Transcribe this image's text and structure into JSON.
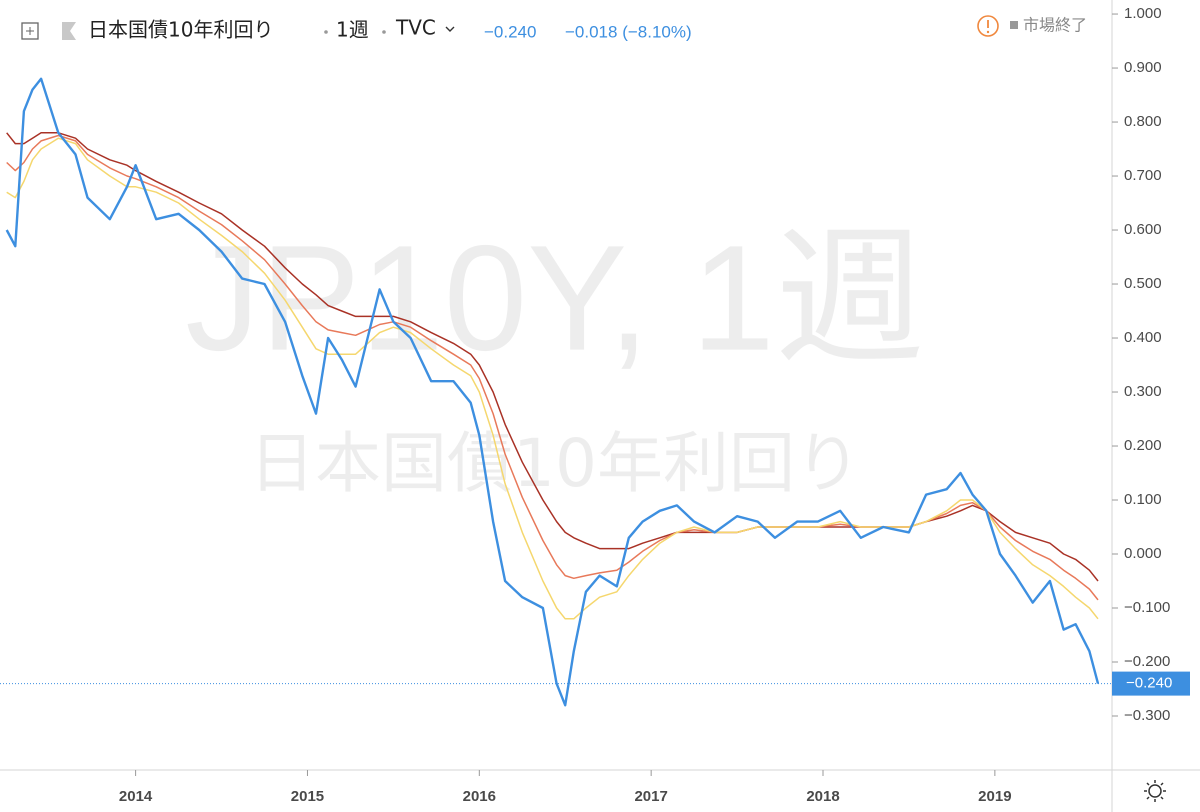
{
  "header": {
    "symbol_name": "日本国債10年利回り",
    "interval": "1週",
    "exchange": "TVC",
    "price": "−0.240",
    "change": "−0.018 (−8.10%)",
    "market_status": "市場終了"
  },
  "watermark": {
    "line1": "JP10Y, 1週",
    "line2": "日本国債10年利回り"
  },
  "chart_data": {
    "type": "line",
    "x": [
      2013.25,
      2013.3,
      2013.35,
      2013.4,
      2013.45,
      2013.55,
      2013.65,
      2013.72,
      2013.85,
      2013.95,
      2014.0,
      2014.12,
      2014.25,
      2014.37,
      2014.5,
      2014.62,
      2014.75,
      2014.87,
      2014.97,
      2015.05,
      2015.12,
      2015.2,
      2015.28,
      2015.35,
      2015.42,
      2015.5,
      2015.6,
      2015.72,
      2015.85,
      2015.95,
      2016.0,
      2016.08,
      2016.15,
      2016.25,
      2016.37,
      2016.45,
      2016.5,
      2016.55,
      2016.62,
      2016.7,
      2016.8,
      2016.87,
      2016.95,
      2017.05,
      2017.15,
      2017.25,
      2017.37,
      2017.5,
      2017.62,
      2017.72,
      2017.85,
      2017.97,
      2018.1,
      2018.22,
      2018.35,
      2018.5,
      2018.6,
      2018.72,
      2018.8,
      2018.87,
      2018.95,
      2019.03,
      2019.12,
      2019.22,
      2019.32,
      2019.4,
      2019.47,
      2019.55,
      2019.6
    ],
    "series": [
      {
        "color": "#3d8fe0",
        "values": [
          0.6,
          0.57,
          0.82,
          0.86,
          0.88,
          0.78,
          0.74,
          0.66,
          0.62,
          0.68,
          0.72,
          0.62,
          0.63,
          0.6,
          0.56,
          0.51,
          0.5,
          0.43,
          0.33,
          0.26,
          0.4,
          0.36,
          0.31,
          0.4,
          0.49,
          0.43,
          0.4,
          0.32,
          0.32,
          0.28,
          0.22,
          0.06,
          -0.05,
          -0.08,
          -0.1,
          -0.24,
          -0.28,
          -0.18,
          -0.07,
          -0.04,
          -0.06,
          0.03,
          0.06,
          0.08,
          0.09,
          0.06,
          0.04,
          0.07,
          0.06,
          0.03,
          0.06,
          0.06,
          0.08,
          0.03,
          0.05,
          0.04,
          0.11,
          0.12,
          0.15,
          0.11,
          0.08,
          0.0,
          -0.04,
          -0.09,
          -0.05,
          -0.14,
          -0.13,
          -0.18,
          -0.24
        ]
      },
      {
        "color": "#a93226",
        "values": [
          0.78,
          0.76,
          0.76,
          0.77,
          0.78,
          0.78,
          0.77,
          0.75,
          0.73,
          0.72,
          0.71,
          0.69,
          0.67,
          0.65,
          0.63,
          0.6,
          0.57,
          0.53,
          0.5,
          0.48,
          0.46,
          0.45,
          0.44,
          0.44,
          0.44,
          0.44,
          0.43,
          0.41,
          0.39,
          0.37,
          0.35,
          0.3,
          0.24,
          0.17,
          0.1,
          0.06,
          0.04,
          0.03,
          0.02,
          0.01,
          0.01,
          0.01,
          0.02,
          0.03,
          0.04,
          0.04,
          0.04,
          0.04,
          0.05,
          0.05,
          0.05,
          0.05,
          0.05,
          0.05,
          0.05,
          0.05,
          0.06,
          0.07,
          0.08,
          0.09,
          0.08,
          0.06,
          0.04,
          0.03,
          0.02,
          0.0,
          -0.01,
          -0.03,
          -0.05
        ]
      },
      {
        "color": "#e8795a",
        "values": [
          0.725,
          0.71,
          0.725,
          0.75,
          0.765,
          0.775,
          0.765,
          0.74,
          0.715,
          0.7,
          0.695,
          0.68,
          0.66,
          0.635,
          0.61,
          0.58,
          0.545,
          0.5,
          0.46,
          0.43,
          0.415,
          0.41,
          0.405,
          0.415,
          0.425,
          0.43,
          0.42,
          0.395,
          0.37,
          0.35,
          0.325,
          0.26,
          0.185,
          0.105,
          0.025,
          -0.02,
          -0.04,
          -0.045,
          -0.04,
          -0.035,
          -0.03,
          -0.015,
          0.005,
          0.025,
          0.04,
          0.045,
          0.04,
          0.04,
          0.05,
          0.05,
          0.05,
          0.05,
          0.055,
          0.05,
          0.05,
          0.05,
          0.06,
          0.075,
          0.09,
          0.095,
          0.08,
          0.05,
          0.025,
          0.005,
          -0.01,
          -0.03,
          -0.045,
          -0.065,
          -0.085
        ]
      },
      {
        "color": "#f5d76e",
        "values": [
          0.67,
          0.66,
          0.69,
          0.73,
          0.75,
          0.77,
          0.76,
          0.73,
          0.7,
          0.68,
          0.68,
          0.67,
          0.65,
          0.62,
          0.59,
          0.56,
          0.52,
          0.47,
          0.42,
          0.38,
          0.37,
          0.37,
          0.37,
          0.39,
          0.41,
          0.42,
          0.41,
          0.38,
          0.35,
          0.33,
          0.3,
          0.22,
          0.13,
          0.04,
          -0.05,
          -0.1,
          -0.12,
          -0.12,
          -0.1,
          -0.08,
          -0.07,
          -0.04,
          -0.01,
          0.02,
          0.04,
          0.05,
          0.04,
          0.04,
          0.05,
          0.05,
          0.05,
          0.05,
          0.06,
          0.05,
          0.05,
          0.05,
          0.06,
          0.08,
          0.1,
          0.1,
          0.08,
          0.04,
          0.01,
          -0.02,
          -0.04,
          -0.06,
          -0.08,
          -0.1,
          -0.12
        ]
      }
    ],
    "last_price_label": "−0.240",
    "xlim": [
      2013.24,
      2019.67
    ],
    "xticks": [
      2014,
      2015,
      2016,
      2017,
      2018,
      2019
    ],
    "ylim": [
      -0.4,
      1.026
    ],
    "yticks": [
      {
        "value": 1.0,
        "label": "1.000"
      },
      {
        "value": 0.9,
        "label": "0.900"
      },
      {
        "value": 0.8,
        "label": "0.800"
      },
      {
        "value": 0.7,
        "label": "0.700"
      },
      {
        "value": 0.6,
        "label": "0.600"
      },
      {
        "value": 0.5,
        "label": "0.500"
      },
      {
        "value": 0.4,
        "label": "0.400"
      },
      {
        "value": 0.3,
        "label": "0.300"
      },
      {
        "value": 0.2,
        "label": "0.200"
      },
      {
        "value": 0.1,
        "label": "0.100"
      },
      {
        "value": 0,
        "label": "0.000"
      },
      {
        "value": -0.1,
        "label": "−0.100"
      },
      {
        "value": -0.2,
        "label": "−0.200"
      },
      {
        "value": -0.3,
        "label": "−0.300"
      }
    ]
  }
}
